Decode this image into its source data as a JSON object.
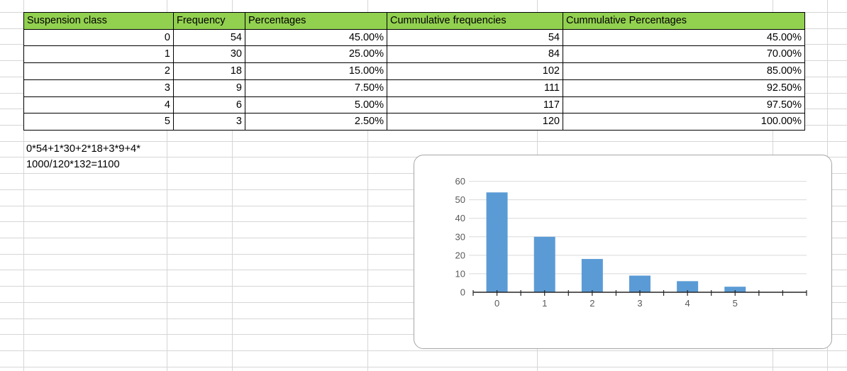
{
  "table": {
    "headers": [
      "Suspension class",
      "Frequency",
      "Percentages",
      "Cummulative frequencies",
      "Cummulative Percentages"
    ],
    "rows": [
      [
        "0",
        "54",
        "45.00%",
        "54",
        "45.00%"
      ],
      [
        "1",
        "30",
        "25.00%",
        "84",
        "70.00%"
      ],
      [
        "2",
        "18",
        "15.00%",
        "102",
        "85.00%"
      ],
      [
        "3",
        "9",
        "7.50%",
        "111",
        "92.50%"
      ],
      [
        "4",
        "6",
        "5.00%",
        "117",
        "97.50%"
      ],
      [
        "5",
        "3",
        "2.50%",
        "120",
        "100.00%"
      ]
    ],
    "header_bg": "#92d050"
  },
  "notes": {
    "formula_line1": "0*54+1*30+2*18+3*9+4*",
    "formula_line2": "1000/120*132=1100"
  },
  "chart_data": {
    "type": "bar",
    "categories": [
      "0",
      "1",
      "2",
      "3",
      "4",
      "5"
    ],
    "values": [
      54,
      30,
      18,
      9,
      6,
      3
    ],
    "title": "",
    "xlabel": "",
    "ylabel": "",
    "ylim": [
      0,
      60
    ],
    "yticks": [
      0,
      10,
      20,
      30,
      40,
      50,
      60
    ],
    "grid": true,
    "legend": false,
    "bar_color": "#5b9bd5",
    "gridline_color": "#d9d9d9",
    "axis_color": "#262626",
    "tick_label_color": "#595959",
    "extra_unlabeled_categories": 1
  }
}
